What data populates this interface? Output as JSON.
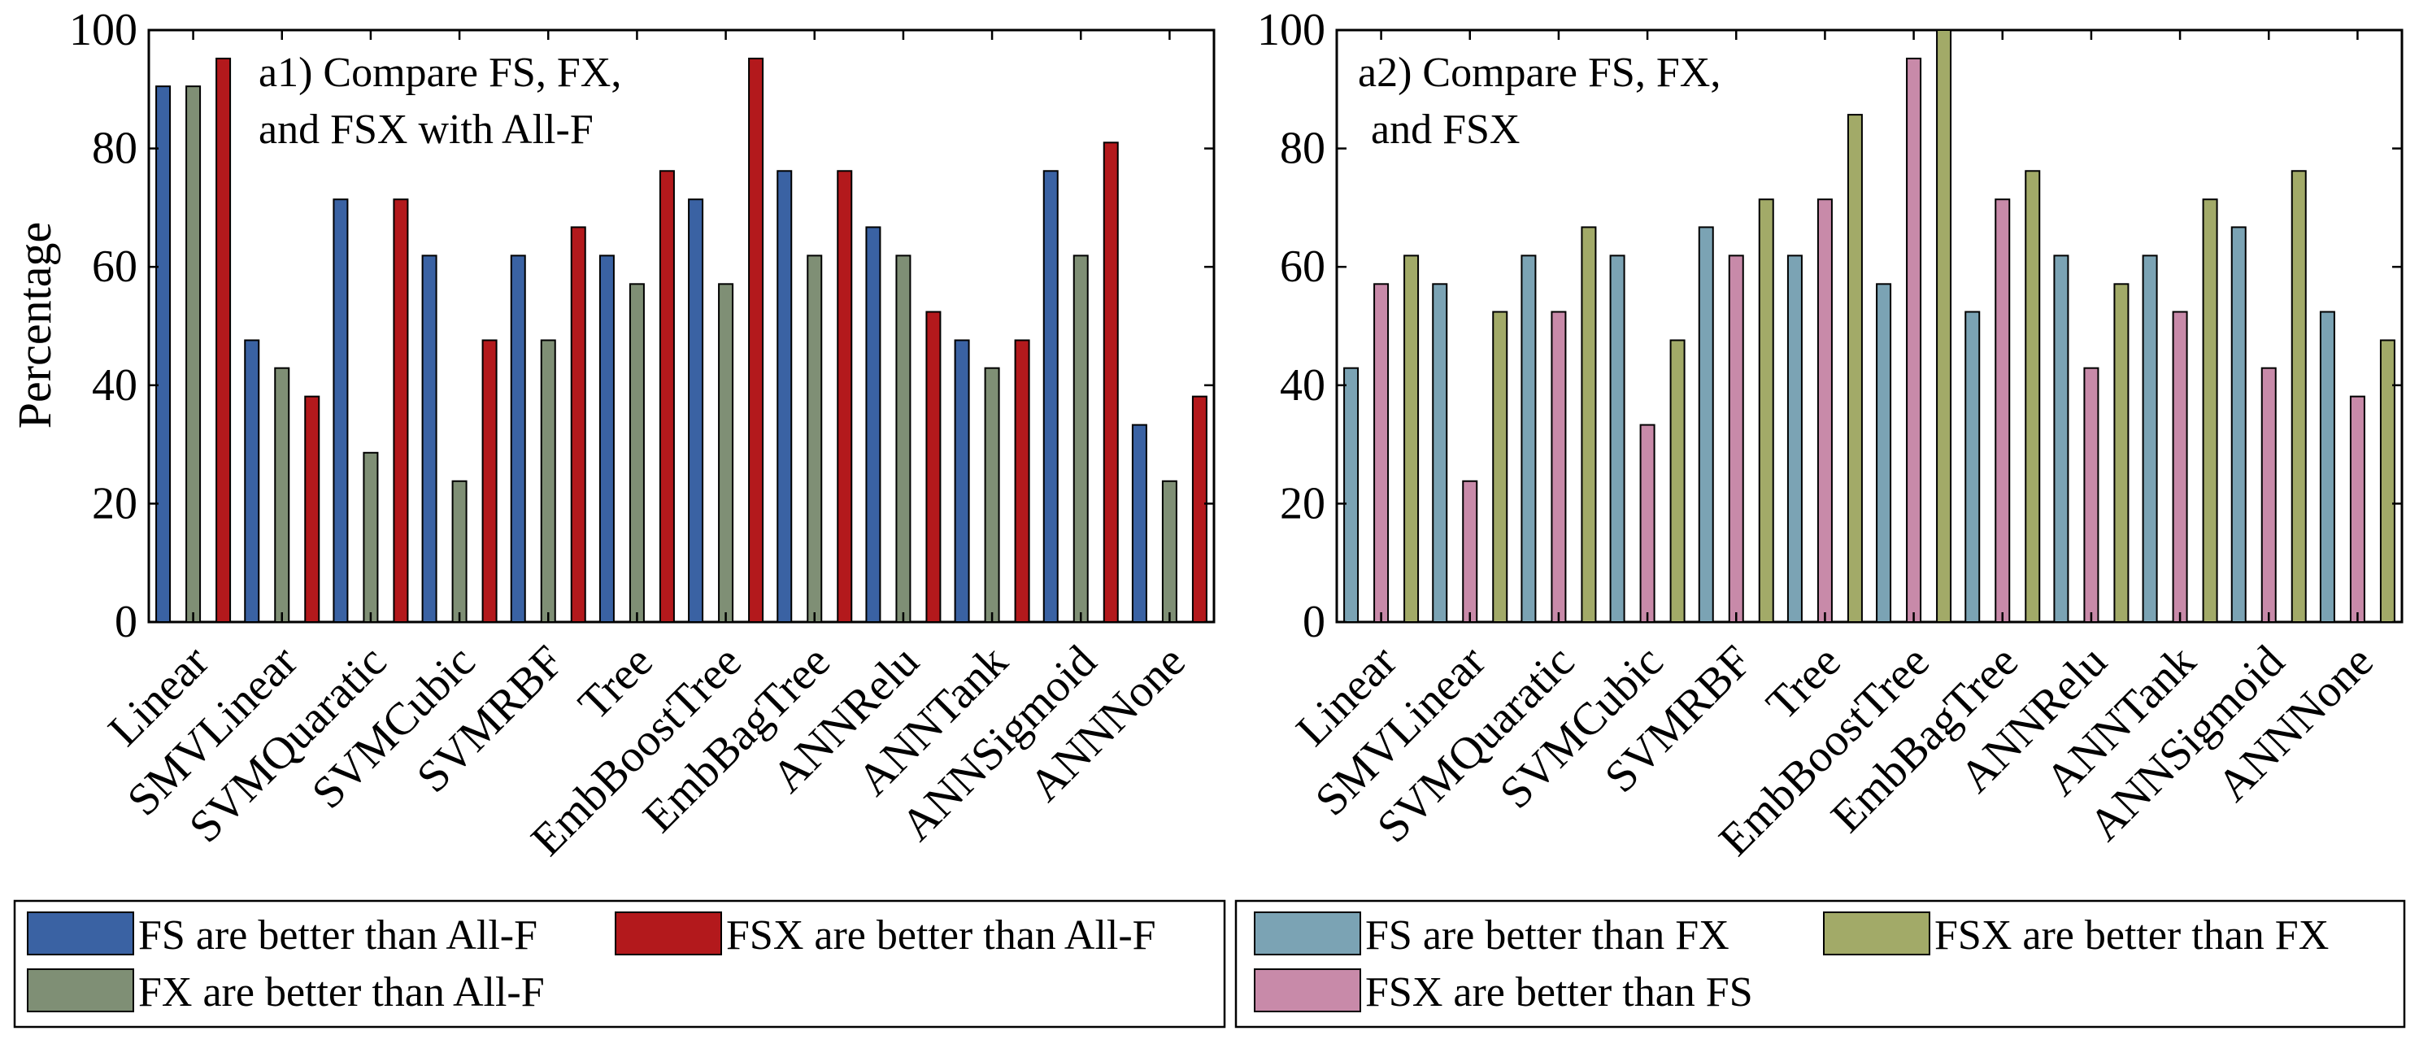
{
  "y_axis_label": "Percentage",
  "categories": [
    "Linear",
    "SMVLinear",
    "SVMQuaratic",
    "SVMCubic",
    "SVMRBF",
    "Tree",
    "EmbBoostTree",
    "EmbBagTree",
    "ANNRelu",
    "ANNTank",
    "ANNSigmoid",
    "ANNNone"
  ],
  "chart_data": [
    {
      "type": "bar",
      "title_lines": [
        "a1) Compare FS, FX,",
        "and FSX with All-F"
      ],
      "ylabel": "Percentage",
      "xlabel": "",
      "ylim": [
        0,
        100
      ],
      "yticks": [
        0,
        20,
        40,
        60,
        80,
        100
      ],
      "categories": [
        "Linear",
        "SMVLinear",
        "SVMQuaratic",
        "SVMCubic",
        "SVMRBF",
        "Tree",
        "EmbBoostTree",
        "EmbBagTree",
        "ANNRelu",
        "ANNTank",
        "ANNSigmoid",
        "ANNNone"
      ],
      "series": [
        {
          "name": "FS are better than All-F",
          "color": "#3a62a3",
          "values": [
            90.5,
            47.6,
            71.4,
            61.9,
            61.9,
            61.9,
            71.4,
            76.2,
            66.7,
            47.6,
            76.2,
            33.3
          ]
        },
        {
          "name": "FX are better than All-F",
          "color": "#7f8f75",
          "values": [
            90.5,
            42.9,
            28.6,
            23.8,
            47.6,
            57.1,
            57.1,
            61.9,
            61.9,
            42.9,
            61.9,
            23.8
          ]
        },
        {
          "name": "FSX are better than All-F",
          "color": "#b3191c",
          "values": [
            95.2,
            38.1,
            71.4,
            47.6,
            66.7,
            76.2,
            95.2,
            76.2,
            52.4,
            47.6,
            81.0,
            38.1
          ]
        }
      ],
      "legend": {
        "placement": "bottom",
        "entries": [
          "FS are better than All-F",
          "FSX are better than All-F",
          "FX are better than All-F"
        ]
      }
    },
    {
      "type": "bar",
      "title_lines": [
        "a2) Compare FS, FX,",
        "and FSX"
      ],
      "ylabel": "",
      "xlabel": "",
      "ylim": [
        0,
        100
      ],
      "yticks": [
        0,
        20,
        40,
        60,
        80,
        100
      ],
      "categories": [
        "Linear",
        "SMVLinear",
        "SVMQuaratic",
        "SVMCubic",
        "SVMRBF",
        "Tree",
        "EmbBoostTree",
        "EmbBagTree",
        "ANNRelu",
        "ANNTank",
        "ANNSigmoid",
        "ANNNone"
      ],
      "series": [
        {
          "name": "FS are better than FX",
          "color": "#7ba3b4",
          "values": [
            42.9,
            57.1,
            61.9,
            61.9,
            66.7,
            61.9,
            57.1,
            52.4,
            61.9,
            61.9,
            66.7,
            52.4
          ]
        },
        {
          "name": "FSX are better than FS",
          "color": "#c88aa9",
          "values": [
            57.1,
            23.8,
            52.4,
            33.3,
            61.9,
            71.4,
            95.2,
            71.4,
            42.9,
            52.4,
            42.9,
            38.1
          ]
        },
        {
          "name": "FSX are better than FX",
          "color": "#a2aa68",
          "values": [
            61.9,
            52.4,
            66.7,
            47.6,
            71.4,
            85.7,
            100,
            76.2,
            57.1,
            71.4,
            76.2,
            47.6
          ]
        }
      ],
      "legend": {
        "placement": "bottom",
        "entries": [
          "FS are better than FX",
          "FSX are better than FX",
          "FSX are better than FS"
        ]
      }
    }
  ]
}
